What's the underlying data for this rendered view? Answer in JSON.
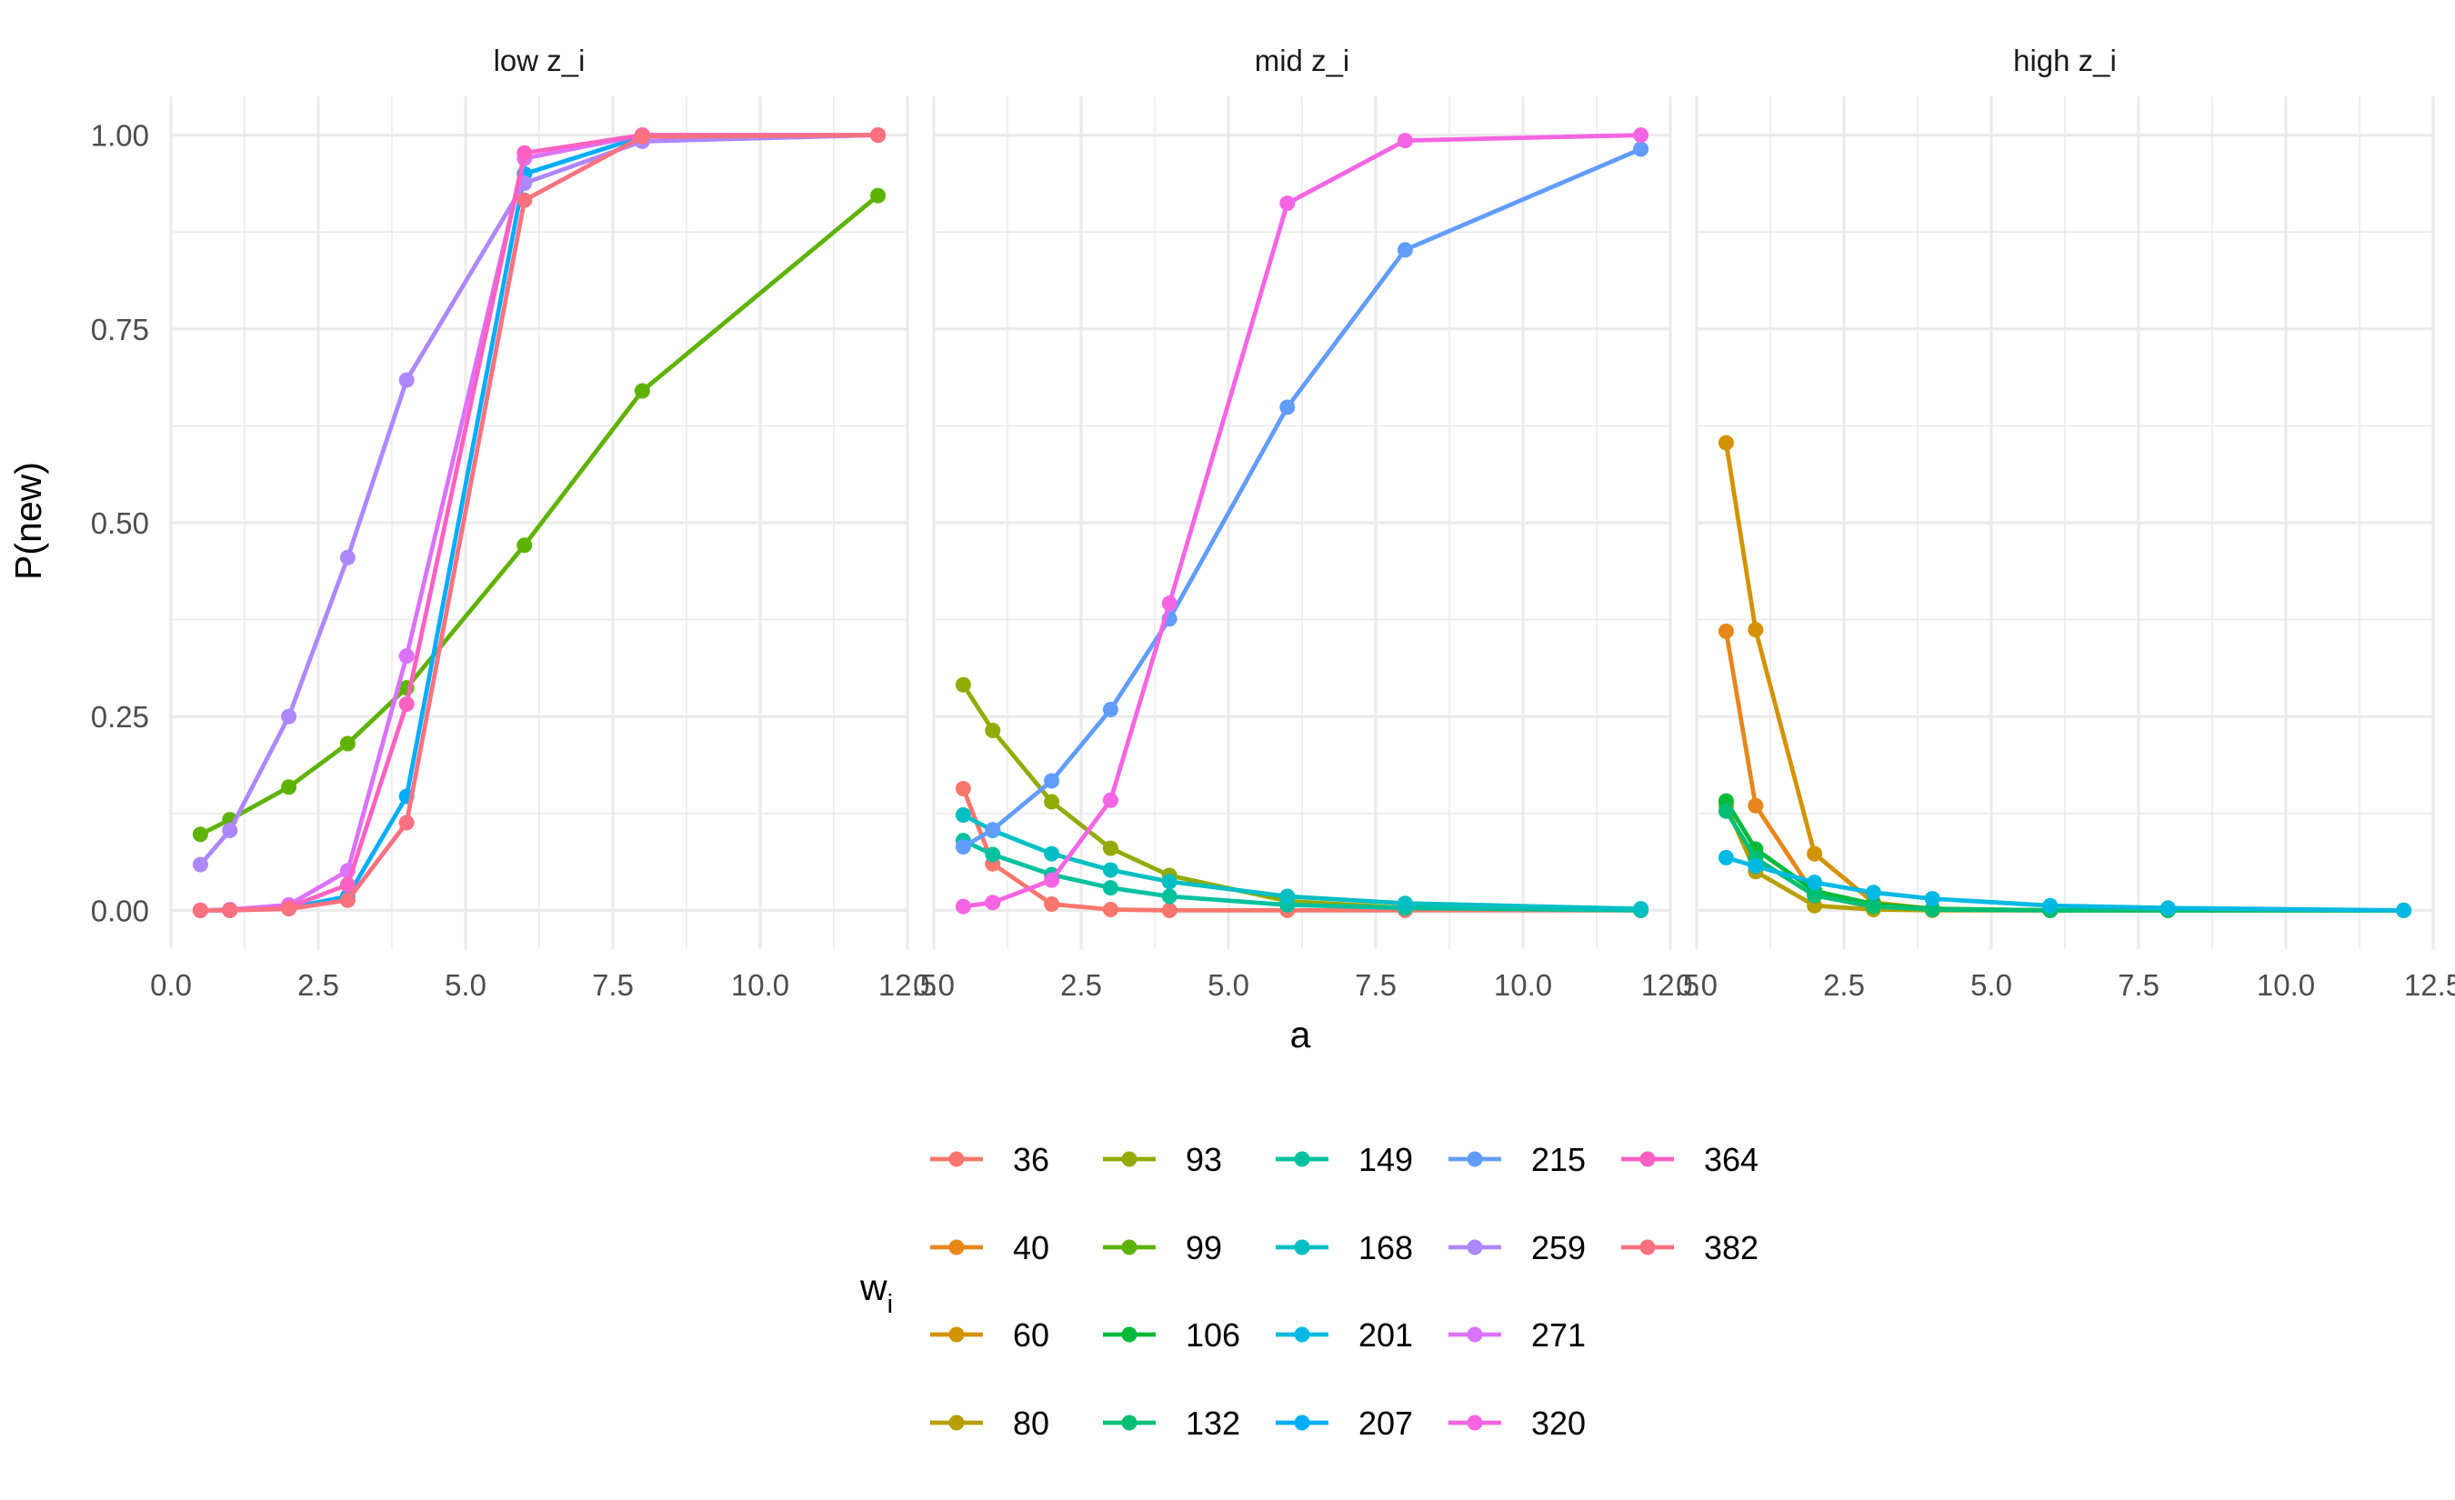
{
  "chart_data": {
    "type": "line",
    "facets": [
      "low z_i",
      "mid z_i",
      "high z_i"
    ],
    "xlabel": "a",
    "ylabel": "P(new)",
    "xlim": [
      0,
      12.5
    ],
    "ylim": [
      -0.05,
      1.05
    ],
    "x_ticks": [
      0.0,
      2.5,
      5.0,
      7.5,
      10.0,
      12.5
    ],
    "x_tick_labels": [
      "0.0",
      "2.5",
      "5.0",
      "7.5",
      "10.0",
      "12.5"
    ],
    "y_ticks": [
      0.0,
      0.25,
      0.5,
      0.75,
      1.0
    ],
    "y_tick_labels": [
      "0.00",
      "0.25",
      "0.50",
      "0.75",
      "1.00"
    ],
    "grid": true,
    "legend": {
      "title": "w",
      "title_subscript": "i",
      "placement": "bottom",
      "ncol": 5
    },
    "x": [
      0.5,
      1,
      2,
      3,
      4,
      6,
      8,
      12
    ],
    "series": [
      {
        "name": "36",
        "color": "#F8766D",
        "facet": "mid z_i",
        "values": [
          0.157,
          0.06,
          0.008,
          0.001,
          0.0,
          0.0,
          0.0,
          0.0
        ]
      },
      {
        "name": "40",
        "color": "#E7861B",
        "facet": "high z_i",
        "values": [
          0.36,
          0.135,
          0.02,
          0.004,
          0.001,
          0.0,
          0.0,
          0.0
        ]
      },
      {
        "name": "60",
        "color": "#D39200",
        "facet": "high z_i",
        "values": [
          0.603,
          0.362,
          0.073,
          0.01,
          0.002,
          0.0,
          0.0,
          0.0
        ]
      },
      {
        "name": "80",
        "color": "#B79F00",
        "facet": "high z_i",
        "values": [
          0.135,
          0.05,
          0.006,
          0.001,
          0.0,
          0.0,
          0.0,
          0.0
        ]
      },
      {
        "name": "93",
        "color": "#93AA00",
        "facet": "mid z_i",
        "values": [
          0.291,
          0.232,
          0.14,
          0.08,
          0.045,
          0.012,
          0.003,
          0.0
        ]
      },
      {
        "name": "99",
        "color": "#5EB300",
        "facet": "low z_i",
        "values": [
          0.098,
          0.117,
          0.159,
          0.215,
          0.287,
          0.471,
          0.67,
          0.922
        ]
      },
      {
        "name": "106",
        "color": "#00BA38",
        "facet": "high z_i",
        "values": [
          0.141,
          0.079,
          0.025,
          0.008,
          0.002,
          0.0,
          0.0,
          0.0
        ]
      },
      {
        "name": "132",
        "color": "#00BF74",
        "facet": "high z_i",
        "values": [
          0.128,
          0.067,
          0.019,
          0.005,
          0.001,
          0.0,
          0.0,
          0.0
        ]
      },
      {
        "name": "149",
        "color": "#00C19F",
        "facet": "mid z_i",
        "values": [
          0.09,
          0.072,
          0.046,
          0.029,
          0.018,
          0.007,
          0.003,
          0.0
        ]
      },
      {
        "name": "168",
        "color": "#00BFC4",
        "facet": "mid z_i",
        "values": [
          0.123,
          0.103,
          0.073,
          0.052,
          0.037,
          0.018,
          0.009,
          0.002
        ]
      },
      {
        "name": "201",
        "color": "#00B9E3",
        "facet": "high z_i",
        "values": [
          0.068,
          0.057,
          0.036,
          0.023,
          0.015,
          0.006,
          0.003,
          0.0
        ]
      },
      {
        "name": "207",
        "color": "#00ADFA",
        "facet": "low z_i",
        "values": [
          0.0,
          0.0,
          0.003,
          0.018,
          0.147,
          0.95,
          0.998,
          1.0
        ]
      },
      {
        "name": "215",
        "color": "#619CFF",
        "facet": "mid z_i",
        "values": [
          0.082,
          0.104,
          0.167,
          0.259,
          0.376,
          0.649,
          0.852,
          0.982
        ]
      },
      {
        "name": "259",
        "color": "#AE87FF",
        "facet": "low z_i",
        "values": [
          0.059,
          0.103,
          0.25,
          0.455,
          0.684,
          0.938,
          0.992,
          1.0
        ]
      },
      {
        "name": "271",
        "color": "#DB72FB",
        "facet": "low z_i",
        "values": [
          0.0,
          0.001,
          0.007,
          0.051,
          0.328,
          0.97,
          1.0,
          1.0
        ]
      },
      {
        "name": "320",
        "color": "#F564E3",
        "facet": "mid z_i",
        "values": [
          0.005,
          0.01,
          0.039,
          0.142,
          0.396,
          0.912,
          0.993,
          1.0
        ]
      },
      {
        "name": "364",
        "color": "#FF61C3",
        "facet": "low z_i",
        "values": [
          0.0,
          0.0,
          0.004,
          0.033,
          0.266,
          0.977,
          1.0,
          1.0
        ]
      },
      {
        "name": "382",
        "color": "#FC717F",
        "facet": "low z_i",
        "values": [
          0.0,
          0.0,
          0.002,
          0.013,
          0.113,
          0.916,
          0.998,
          1.0
        ]
      }
    ]
  }
}
